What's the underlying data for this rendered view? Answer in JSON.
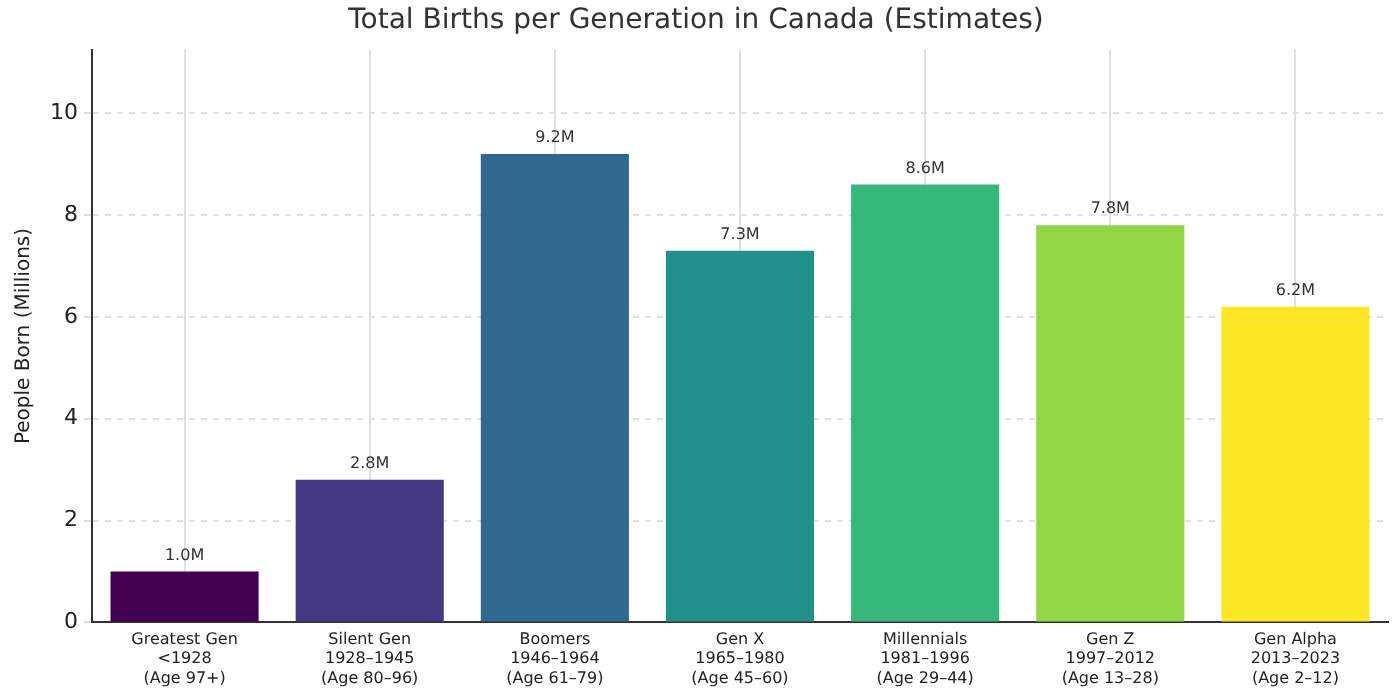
{
  "chart_data": {
    "type": "bar",
    "title": "Total Births per Generation in Canada (Estimates)",
    "ylabel": "People Born (Millions)",
    "categories": [
      "Greatest Gen\n<1928\n(Age 97+)",
      "Silent Gen\n1928–1945\n(Age 80–96)",
      "Boomers\n1946–1964\n(Age 61–79)",
      "Gen X\n1965–1980\n(Age 45–60)",
      "Millennials\n1981–1996\n(Age 29–44)",
      "Gen Z\n1997–2012\n(Age 13–28)",
      "Gen Alpha\n2013–2023\n(Age 2–12)"
    ],
    "values": [
      1.0,
      2.8,
      9.2,
      7.3,
      8.6,
      7.8,
      6.2
    ],
    "value_labels": [
      "1.0M",
      "2.8M",
      "9.2M",
      "7.3M",
      "8.6M",
      "7.8M",
      "6.2M"
    ],
    "colors": [
      "#440154",
      "#443983",
      "#31688e",
      "#21918c",
      "#35b779",
      "#90d743",
      "#fde725"
    ],
    "ylim": [
      0,
      11.25
    ],
    "yticks": [
      0,
      2,
      4,
      6,
      8,
      10
    ],
    "grid": true
  }
}
